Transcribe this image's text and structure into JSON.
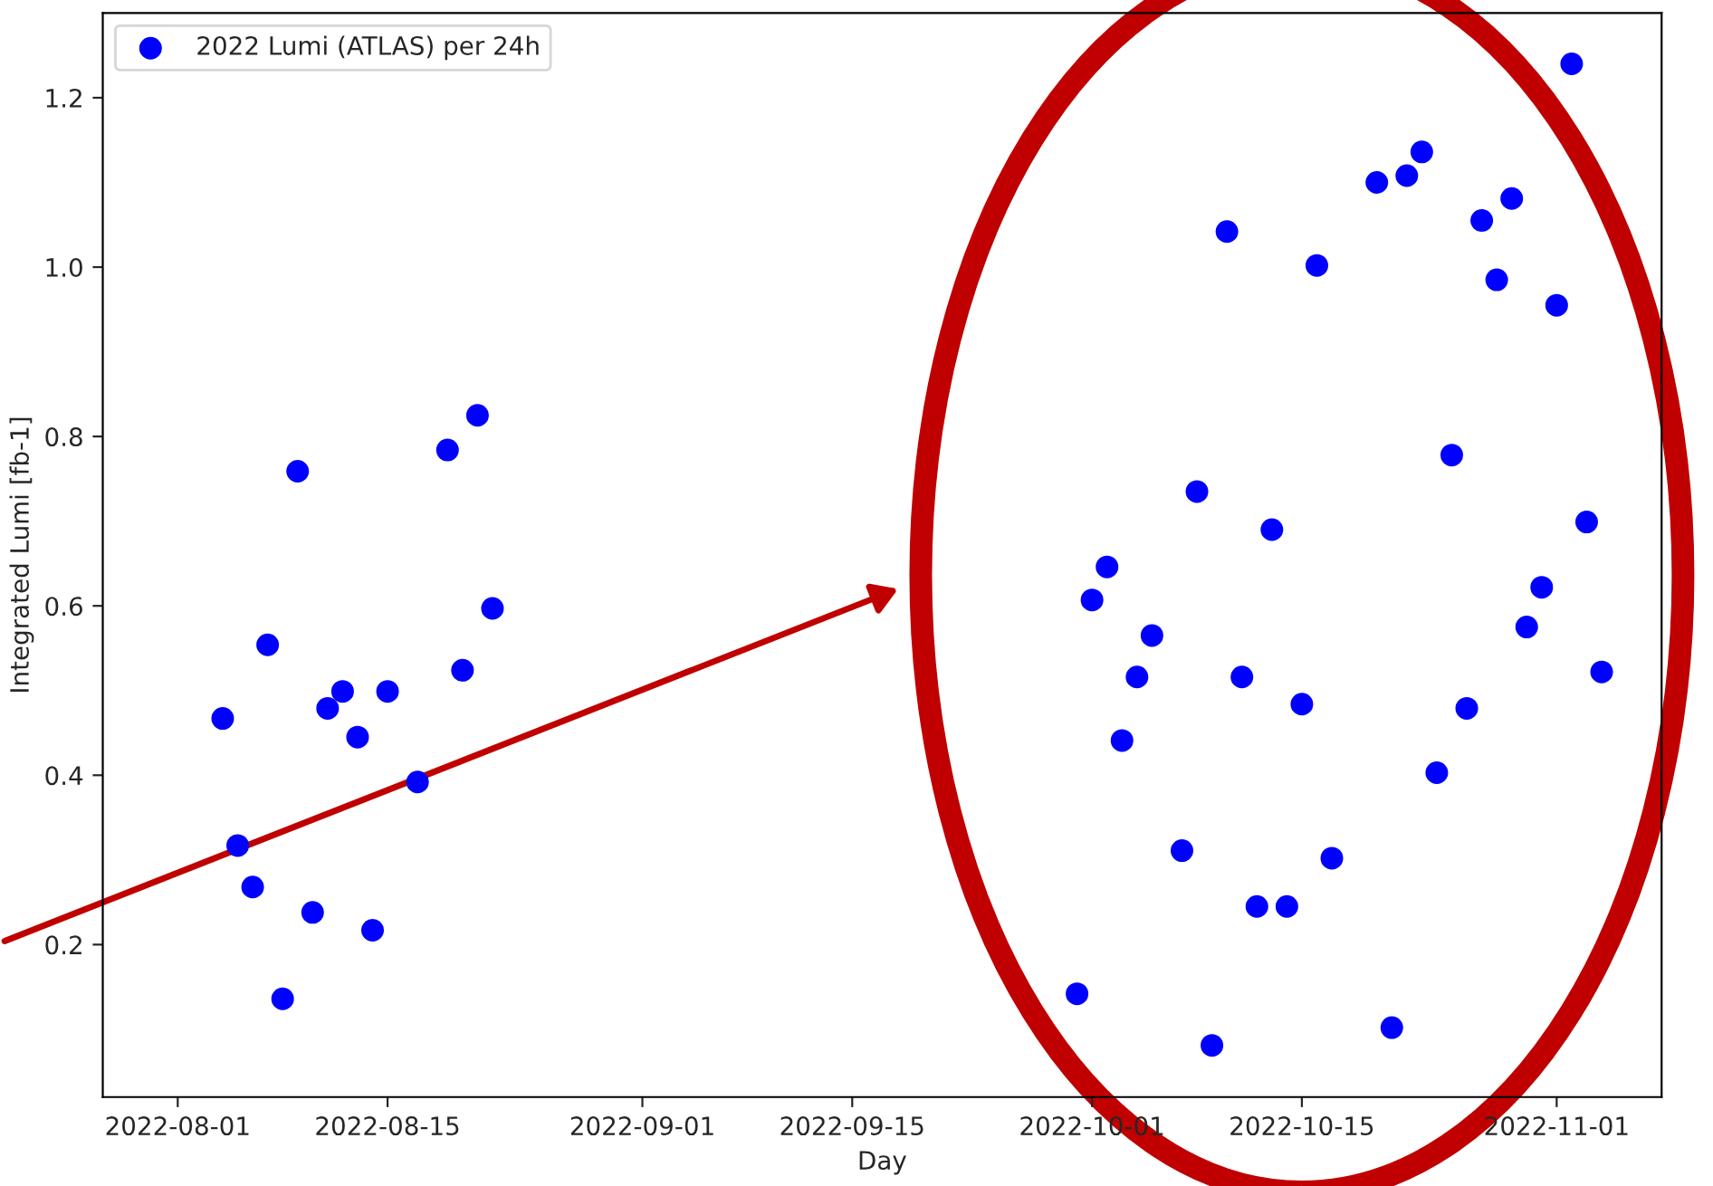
{
  "chart_data": {
    "type": "scatter",
    "xlabel": "Day",
    "ylabel": "Integrated Lumi [fb-1]",
    "series": [
      {
        "name": "2022 Lumi (ATLAS) per 24h",
        "color": "#0000ff",
        "x": [
          "2022-08-04",
          "2022-08-05",
          "2022-08-06",
          "2022-08-07",
          "2022-08-08",
          "2022-08-09",
          "2022-08-10",
          "2022-08-11",
          "2022-08-12",
          "2022-08-13",
          "2022-08-14",
          "2022-08-15",
          "2022-08-17",
          "2022-08-19",
          "2022-08-20",
          "2022-08-21",
          "2022-08-22",
          "2022-09-30",
          "2022-10-01",
          "2022-10-02",
          "2022-10-03",
          "2022-10-04",
          "2022-10-05",
          "2022-10-07",
          "2022-10-08",
          "2022-10-09",
          "2022-10-10",
          "2022-10-11",
          "2022-10-12",
          "2022-10-13",
          "2022-10-14",
          "2022-10-15",
          "2022-10-16",
          "2022-10-17",
          "2022-10-20",
          "2022-10-21",
          "2022-10-22",
          "2022-10-23",
          "2022-10-24",
          "2022-10-25",
          "2022-10-26",
          "2022-10-27",
          "2022-10-28",
          "2022-10-29",
          "2022-10-30",
          "2022-10-31",
          "2022-11-01",
          "2022-11-02",
          "2022-11-03",
          "2022-11-04"
        ],
        "values": [
          0.467,
          0.317,
          0.268,
          0.554,
          0.136,
          0.759,
          0.238,
          0.479,
          0.499,
          0.445,
          0.217,
          0.499,
          0.392,
          0.784,
          0.524,
          0.825,
          0.597,
          0.142,
          0.607,
          0.646,
          0.441,
          0.516,
          0.565,
          0.311,
          0.735,
          0.081,
          1.042,
          0.516,
          0.245,
          0.69,
          0.245,
          0.484,
          1.002,
          0.302,
          1.1,
          0.102,
          1.108,
          1.136,
          0.403,
          0.778,
          0.479,
          1.055,
          0.985,
          1.081,
          0.575,
          0.622,
          0.955,
          1.24,
          0.699,
          0.522
        ]
      }
    ],
    "xlim": [
      "2022-07-27",
      "2022-11-08"
    ],
    "xticks": [
      {
        "value": "2022-08-01",
        "label": "2022-08-01"
      },
      {
        "value": "2022-08-15",
        "label": "2022-08-15"
      },
      {
        "value": "2022-09-01",
        "label": "2022-09-01"
      },
      {
        "value": "2022-09-15",
        "label": "2022-09-15"
      },
      {
        "value": "2022-10-01",
        "label": "2022-10-01"
      },
      {
        "value": "2022-10-15",
        "label": "2022-10-15"
      },
      {
        "value": "2022-11-01",
        "label": "2022-11-01"
      }
    ],
    "ylim": [
      0.02,
      1.3
    ],
    "yticks": [
      0.2,
      0.4,
      0.6,
      0.8,
      {
        "value": 1,
        "label": "1.0"
      },
      1.2
    ],
    "marker": "circle",
    "legend": "top left",
    "grid": false
  }
}
